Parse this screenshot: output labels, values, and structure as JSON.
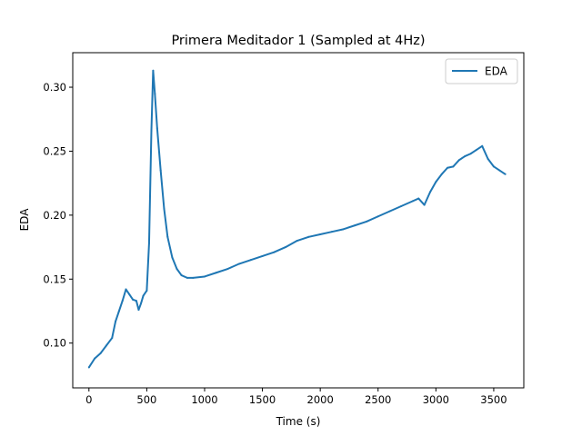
{
  "chart_data": {
    "type": "line",
    "title": "Primera Meditador 1 (Sampled at 4Hz)",
    "xlabel": "Time (s)",
    "ylabel": "EDA",
    "xlim": [
      -140,
      3760
    ],
    "ylim": [
      0.065,
      0.327
    ],
    "x_ticks": [
      0,
      500,
      1000,
      1500,
      2000,
      2500,
      3000,
      3500
    ],
    "y_ticks": [
      0.1,
      0.15,
      0.2,
      0.25,
      0.3
    ],
    "x_tick_labels": [
      "0",
      "500",
      "1000",
      "1500",
      "2000",
      "2500",
      "3000",
      "3500"
    ],
    "y_tick_labels": [
      "0.10",
      "0.15",
      "0.20",
      "0.25",
      "0.30"
    ],
    "grid": false,
    "legend": {
      "position": "top-right",
      "entries": [
        "EDA"
      ]
    },
    "series": [
      {
        "name": "EDA",
        "color": "#1f77b4",
        "x": [
          0,
          50,
          100,
          150,
          200,
          230,
          260,
          290,
          320,
          350,
          380,
          410,
          430,
          450,
          470,
          500,
          520,
          540,
          555,
          570,
          590,
          620,
          650,
          680,
          720,
          760,
          800,
          850,
          900,
          1000,
          1100,
          1200,
          1300,
          1400,
          1500,
          1600,
          1700,
          1800,
          1900,
          2000,
          2100,
          2200,
          2300,
          2400,
          2500,
          2600,
          2700,
          2800,
          2850,
          2900,
          2950,
          3000,
          3050,
          3100,
          3150,
          3200,
          3250,
          3300,
          3350,
          3400,
          3450,
          3500,
          3550,
          3600
        ],
        "y": [
          0.081,
          0.088,
          0.092,
          0.098,
          0.104,
          0.117,
          0.125,
          0.133,
          0.142,
          0.138,
          0.134,
          0.133,
          0.126,
          0.131,
          0.137,
          0.141,
          0.178,
          0.266,
          0.313,
          0.295,
          0.268,
          0.235,
          0.205,
          0.183,
          0.167,
          0.158,
          0.153,
          0.151,
          0.151,
          0.152,
          0.155,
          0.158,
          0.162,
          0.165,
          0.168,
          0.171,
          0.175,
          0.18,
          0.183,
          0.185,
          0.187,
          0.189,
          0.192,
          0.195,
          0.199,
          0.203,
          0.207,
          0.211,
          0.213,
          0.208,
          0.218,
          0.226,
          0.232,
          0.237,
          0.238,
          0.243,
          0.246,
          0.248,
          0.251,
          0.254,
          0.244,
          0.238,
          0.235,
          0.232
        ]
      }
    ]
  }
}
